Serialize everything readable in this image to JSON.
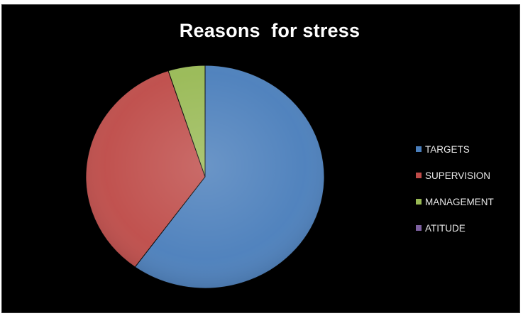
{
  "chart_data": {
    "type": "pie",
    "title": "Reasons  for stress",
    "categories": [
      "TARGETS",
      "SUPERVISION",
      "MANAGEMENT",
      "ATITUDE"
    ],
    "values": [
      60,
      35,
      5,
      0
    ],
    "colors": [
      "#4a7ebb",
      "#be4b48",
      "#98b954",
      "#7d60a0"
    ],
    "start_angle_deg": 0,
    "direction": "clockwise",
    "background": "#000000",
    "legend_position": "right"
  }
}
